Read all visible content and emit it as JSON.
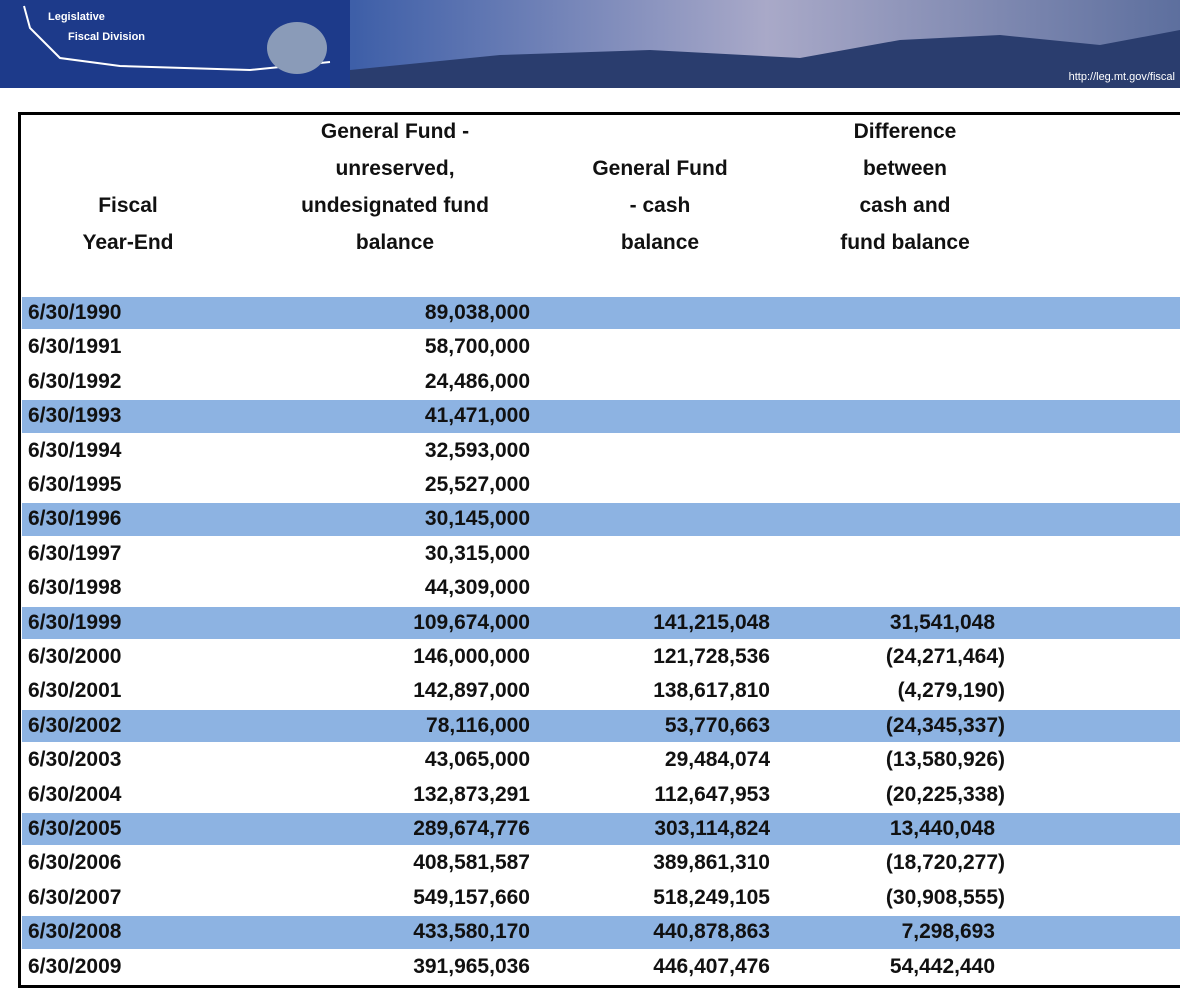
{
  "banner": {
    "org_line1": "Legislative",
    "org_line2": "Fiscal Division",
    "url": "http://leg.mt.gov/fiscal"
  },
  "table": {
    "header": [
      [
        "Fiscal",
        "Year-End"
      ],
      [
        "General Fund -",
        "unreserved,",
        "undesignated fund",
        "balance"
      ],
      [
        "General Fund",
        "- cash",
        "balance"
      ],
      [
        "Difference",
        "between",
        "cash and",
        "fund balance"
      ]
    ],
    "rows": [
      [
        "6/30/1990",
        "89,038,000",
        null,
        null
      ],
      [
        "6/30/1991",
        "58,700,000",
        null,
        null
      ],
      [
        "6/30/1992",
        "24,486,000",
        null,
        null
      ],
      [
        "6/30/1993",
        "41,471,000",
        null,
        null
      ],
      [
        "6/30/1994",
        "32,593,000",
        null,
        null
      ],
      [
        "6/30/1995",
        "25,527,000",
        null,
        null
      ],
      [
        "6/30/1996",
        "30,145,000",
        null,
        null
      ],
      [
        "6/30/1997",
        "30,315,000",
        null,
        null
      ],
      [
        "6/30/1998",
        "44,309,000",
        null,
        null
      ],
      [
        "6/30/1999",
        "109,674,000",
        "141,215,048",
        "31,541,048"
      ],
      [
        "6/30/2000",
        "146,000,000",
        "121,728,536",
        "(24,271,464)"
      ],
      [
        "6/30/2001",
        "142,897,000",
        "138,617,810",
        "(4,279,190)"
      ],
      [
        "6/30/2002",
        "78,116,000",
        "53,770,663",
        "(24,345,337)"
      ],
      [
        "6/30/2003",
        "43,065,000",
        "29,484,074",
        "(13,580,926)"
      ],
      [
        "6/30/2004",
        "132,873,291",
        "112,647,953",
        "(20,225,338)"
      ],
      [
        "6/30/2005",
        "289,674,776",
        "303,114,824",
        "13,440,048"
      ],
      [
        "6/30/2006",
        "408,581,587",
        "389,861,310",
        "(18,720,277)"
      ],
      [
        "6/30/2007",
        "549,157,660",
        "518,249,105",
        "(30,908,555)"
      ],
      [
        "6/30/2008",
        "433,580,170",
        "440,878,863",
        "7,298,693"
      ],
      [
        "6/30/2009",
        "391,965,036",
        "446,407,476",
        "54,442,440"
      ]
    ]
  }
}
